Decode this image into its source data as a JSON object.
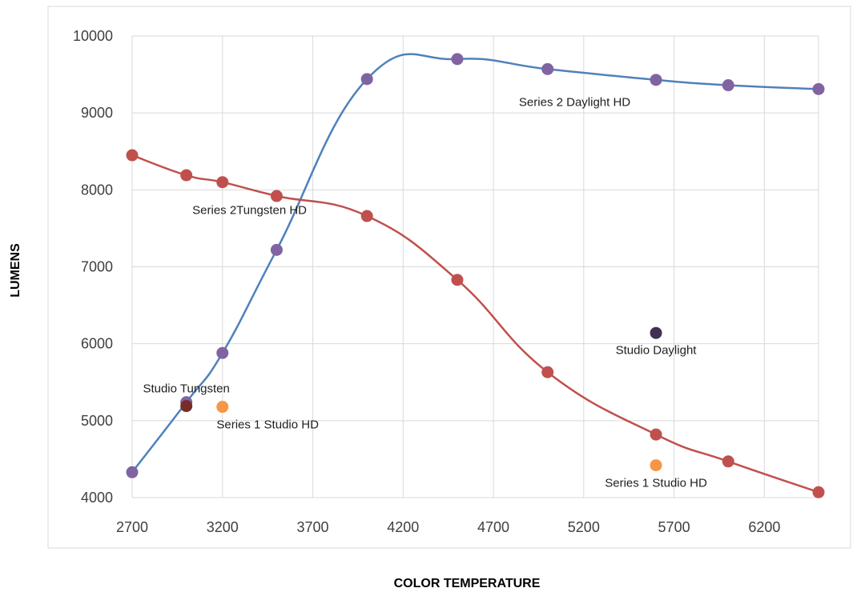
{
  "chart_data": {
    "type": "scatter",
    "title": "",
    "xlabel": "COLOR TEMPERATURE",
    "ylabel": "LUMENS",
    "xlim": [
      2700,
      6500
    ],
    "ylim": [
      4000,
      10000
    ],
    "x_ticks": [
      "2700",
      "3200",
      "3700",
      "4200",
      "4700",
      "5200",
      "5700",
      "6200"
    ],
    "y_ticks": [
      "10000",
      "9000",
      "8000",
      "7000",
      "6000",
      "5000",
      "4000"
    ],
    "grid": true,
    "legend": "none",
    "series": [
      {
        "name": "Series 2 Daylight HD",
        "style": "smooth-line-markers",
        "line_color": "#4f81bd",
        "marker_color": "#8064a2",
        "x": [
          2700,
          3000,
          3200,
          3500,
          4000,
          4500,
          5000,
          5600,
          6000,
          6500
        ],
        "y": [
          4330,
          5240,
          5880,
          7220,
          9440,
          9700,
          9570,
          9430,
          9360,
          9310
        ]
      },
      {
        "name": "Series 2Tungsten HD",
        "style": "smooth-line-markers",
        "line_color": "#c0504d",
        "marker_color": "#c0504d",
        "x": [
          2700,
          3000,
          3200,
          3500,
          4000,
          4500,
          5000,
          5600,
          6000,
          6500
        ],
        "y": [
          8450,
          8190,
          8100,
          7920,
          7660,
          6830,
          5630,
          4820,
          4470,
          4070
        ]
      },
      {
        "name": "Studio Tungsten",
        "style": "markers",
        "marker_color": "#772c2a",
        "x": [
          3000
        ],
        "y": [
          5190
        ]
      },
      {
        "name": "Series 1 Studio HD",
        "style": "markers",
        "marker_color": "#f79646",
        "x": [
          3200,
          5600
        ],
        "y": [
          5180,
          4420
        ]
      },
      {
        "name": "Studio Daylight",
        "style": "markers",
        "marker_color": "#403152",
        "x": [
          5600
        ],
        "y": [
          6140
        ]
      }
    ],
    "annotations": [
      {
        "text": "Series 2 Daylight HD",
        "x": 5150,
        "y": 9140
      },
      {
        "text": "Series 2Tungsten HD",
        "x": 3350,
        "y": 7740
      },
      {
        "text": "Studio Daylight",
        "x": 5600,
        "y": 5920
      },
      {
        "text": "Studio Tungsten",
        "x": 3000,
        "y": 5420
      },
      {
        "text": "Series 1 Studio HD",
        "x": 3450,
        "y": 4950
      },
      {
        "text": "Series 1 Studio HD",
        "x": 5600,
        "y": 4190
      }
    ]
  }
}
